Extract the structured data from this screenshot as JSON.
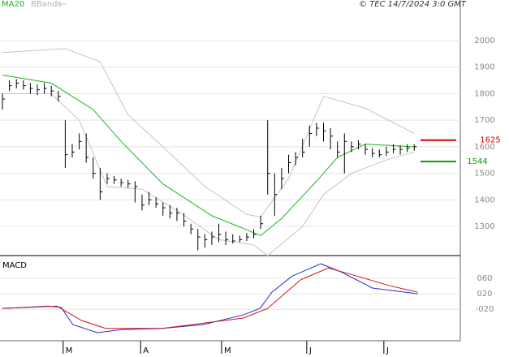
{
  "chart_data": [
    {
      "type": "ohlc",
      "source": "© TEC 14/7/2024 3:0 GMT",
      "x": [
        0,
        1,
        2,
        3,
        4,
        5,
        6,
        7,
        8,
        9,
        10,
        11,
        12,
        13,
        14,
        15,
        16,
        17,
        18,
        19,
        20,
        21,
        22,
        23,
        24,
        25,
        26,
        27,
        28,
        29,
        30,
        31,
        32,
        33,
        34,
        35,
        36,
        37,
        38,
        39,
        40,
        41,
        42,
        43,
        44,
        45,
        46,
        47,
        48,
        49,
        50,
        51,
        52,
        53,
        54,
        55,
        56,
        57,
        58,
        59
      ],
      "close": [
        1780,
        1830,
        1840,
        1830,
        1820,
        1815,
        1820,
        1810,
        1790,
        1570,
        1580,
        1620,
        1560,
        1500,
        1430,
        1480,
        1475,
        1465,
        1460,
        1450,
        1380,
        1400,
        1385,
        1370,
        1350,
        1350,
        1320,
        1290,
        1260,
        1250,
        1260,
        1270,
        1250,
        1245,
        1250,
        1260,
        1270,
        1310,
        1500,
        1420,
        1480,
        1540,
        1560,
        1580,
        1650,
        1670,
        1660,
        1640,
        1580,
        1620,
        1600,
        1610,
        1590,
        1575,
        1570,
        1580,
        1590,
        1590,
        1595,
        1600
      ],
      "high": [
        1800,
        1850,
        1855,
        1850,
        1840,
        1835,
        1840,
        1830,
        1810,
        1700,
        1610,
        1650,
        1650,
        1560,
        1520,
        1500,
        1490,
        1480,
        1475,
        1470,
        1420,
        1430,
        1410,
        1390,
        1380,
        1370,
        1350,
        1310,
        1290,
        1270,
        1280,
        1310,
        1280,
        1270,
        1265,
        1275,
        1290,
        1340,
        1700,
        1500,
        1520,
        1570,
        1580,
        1630,
        1680,
        1690,
        1690,
        1670,
        1620,
        1650,
        1620,
        1625,
        1610,
        1595,
        1590,
        1600,
        1610,
        1605,
        1610,
        1610
      ],
      "low": [
        1740,
        1810,
        1820,
        1815,
        1800,
        1795,
        1800,
        1790,
        1770,
        1520,
        1560,
        1590,
        1540,
        1480,
        1400,
        1460,
        1460,
        1450,
        1445,
        1390,
        1360,
        1380,
        1370,
        1340,
        1330,
        1320,
        1300,
        1270,
        1210,
        1220,
        1230,
        1240,
        1230,
        1235,
        1240,
        1245,
        1255,
        1290,
        1420,
        1340,
        1440,
        1500,
        1530,
        1560,
        1600,
        1640,
        1620,
        1590,
        1560,
        1500,
        1580,
        1590,
        1570,
        1560,
        1560,
        1565,
        1575,
        1570,
        1580,
        1585
      ],
      "series": [
        {
          "name": "MA20",
          "color": "#1fb21f",
          "x": [
            0,
            7,
            13,
            17,
            23,
            30,
            35,
            37,
            40,
            45,
            48,
            52,
            59
          ],
          "values": [
            1870,
            1840,
            1740,
            1620,
            1460,
            1340,
            1287,
            1265,
            1330,
            1470,
            1560,
            1610,
            1600
          ]
        },
        {
          "name": "BBands",
          "color": "#c4c4c4",
          "x": [
            0,
            9,
            14,
            18,
            23,
            29,
            35,
            37,
            41,
            46,
            52,
            59
          ],
          "values": [
            1955,
            1970,
            1920,
            1720,
            1600,
            1450,
            1345,
            1335,
            1480,
            1790,
            1745,
            1650
          ],
          "lower": {
            "x": [
              0,
              7,
              11,
              15,
              20,
              25,
              31,
              36,
              38,
              43,
              46,
              50,
              55,
              59
            ],
            "values": [
              1800,
              1800,
              1700,
              1450,
              1440,
              1360,
              1250,
              1230,
              1190,
              1300,
              1420,
              1500,
              1550,
              1580
            ]
          }
        }
      ],
      "annotations": [
        {
          "value": 1625,
          "color": "#d40000"
        },
        {
          "value": 1544,
          "color": "#0a9a0a"
        }
      ],
      "xlim": [
        -0.35,
        65.6
      ],
      "ylim": [
        1196,
        2153
      ],
      "yticks": [
        1300,
        1400,
        1500,
        1600,
        1700,
        1800,
        1900,
        2000
      ],
      "grid": true
    },
    {
      "type": "line",
      "title": "MACD",
      "series": [
        {
          "color": "#2030d0",
          "x": [
            0,
            6.6,
            8.4,
            10.1,
            13.6,
            17.1,
            22.9,
            28.7,
            34.5,
            36.9,
            38.6,
            41.5,
            45.6,
            48.5,
            53,
            59.5
          ],
          "values": [
            -18,
            -12,
            -15,
            -60,
            -81,
            -73,
            -70,
            -60,
            -35,
            -18,
            24,
            66,
            98,
            77,
            35,
            20
          ]
        },
        {
          "color": "#d01010",
          "x": [
            0,
            7.8,
            11.3,
            14.8,
            22.9,
            34.5,
            38,
            42.7,
            46.7,
            50.8,
            55.5,
            59.5
          ],
          "values": [
            -18,
            -12,
            -49,
            -70,
            -70,
            -43,
            -18,
            56,
            87,
            66,
            41,
            24
          ]
        }
      ],
      "xlim": [
        -0.35,
        65.6
      ],
      "xticks": [
        {
          "value": 8.7,
          "label": "M"
        },
        {
          "value": 19.8,
          "label": "A"
        },
        {
          "value": 31.4,
          "label": "M"
        },
        {
          "value": 43.6,
          "label": "J"
        },
        {
          "value": 54.65,
          "label": "J"
        }
      ],
      "ylim": [
        -102,
        113
      ],
      "yticks": [
        {
          "value": 60,
          "label": "060"
        },
        {
          "value": 20,
          "label": "020"
        },
        {
          "value": -20,
          "label": "-020"
        }
      ],
      "grid": true
    }
  ]
}
